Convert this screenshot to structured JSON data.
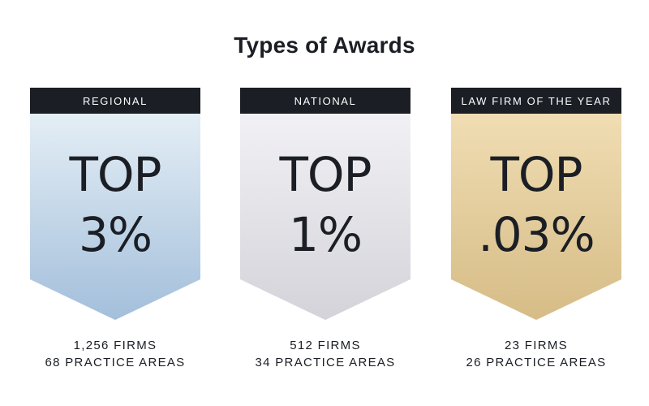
{
  "title": "Types of Awards",
  "awards": [
    {
      "header": "REGIONAL",
      "line1": "TOP",
      "line2": "3%",
      "firms": "1,256 FIRMS",
      "areas": "68 PRACTICE AREAS",
      "colors": {
        "top": "#e4eef5",
        "bottom": "#a3bfdb"
      }
    },
    {
      "header": "NATIONAL",
      "line1": "TOP",
      "line2": "1%",
      "firms": "512 FIRMS",
      "areas": "34 PRACTICE AREAS",
      "colors": {
        "top": "#f1f1f5",
        "bottom": "#d3d3d9"
      }
    },
    {
      "header": "LAW FIRM OF THE YEAR",
      "line1": "TOP",
      "line2": ".03%",
      "firms": "23 FIRMS",
      "areas": "26 PRACTICE AREAS",
      "colors": {
        "top": "#f0ddb3",
        "bottom": "#d6bc86"
      }
    }
  ]
}
